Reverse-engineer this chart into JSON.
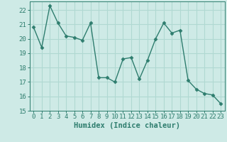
{
  "x": [
    0,
    1,
    2,
    3,
    4,
    5,
    6,
    7,
    8,
    9,
    10,
    11,
    12,
    13,
    14,
    15,
    16,
    17,
    18,
    19,
    20,
    21,
    22,
    23
  ],
  "y": [
    20.8,
    19.4,
    22.3,
    21.1,
    20.2,
    20.1,
    19.9,
    21.1,
    17.3,
    17.3,
    17.0,
    18.6,
    18.7,
    17.2,
    18.5,
    20.0,
    21.1,
    20.4,
    20.6,
    17.1,
    16.5,
    16.2,
    16.1,
    15.5
  ],
  "line_color": "#2e7d6e",
  "marker": "D",
  "marker_size": 2.5,
  "bg_color": "#ceeae6",
  "grid_color": "#b0d8d2",
  "xlabel": "Humidex (Indice chaleur)",
  "xlim": [
    -0.5,
    23.5
  ],
  "ylim": [
    15,
    22.6
  ],
  "yticks": [
    15,
    16,
    17,
    18,
    19,
    20,
    21,
    22
  ],
  "xticks": [
    0,
    1,
    2,
    3,
    4,
    5,
    6,
    7,
    8,
    9,
    10,
    11,
    12,
    13,
    14,
    15,
    16,
    17,
    18,
    19,
    20,
    21,
    22,
    23
  ],
  "xtick_labels": [
    "0",
    "1",
    "2",
    "3",
    "4",
    "5",
    "6",
    "7",
    "8",
    "9",
    "10",
    "11",
    "12",
    "13",
    "14",
    "15",
    "16",
    "17",
    "18",
    "19",
    "20",
    "21",
    "22",
    "23"
  ],
  "tick_fontsize": 6.5,
  "xlabel_fontsize": 7.5,
  "line_width": 1.0
}
